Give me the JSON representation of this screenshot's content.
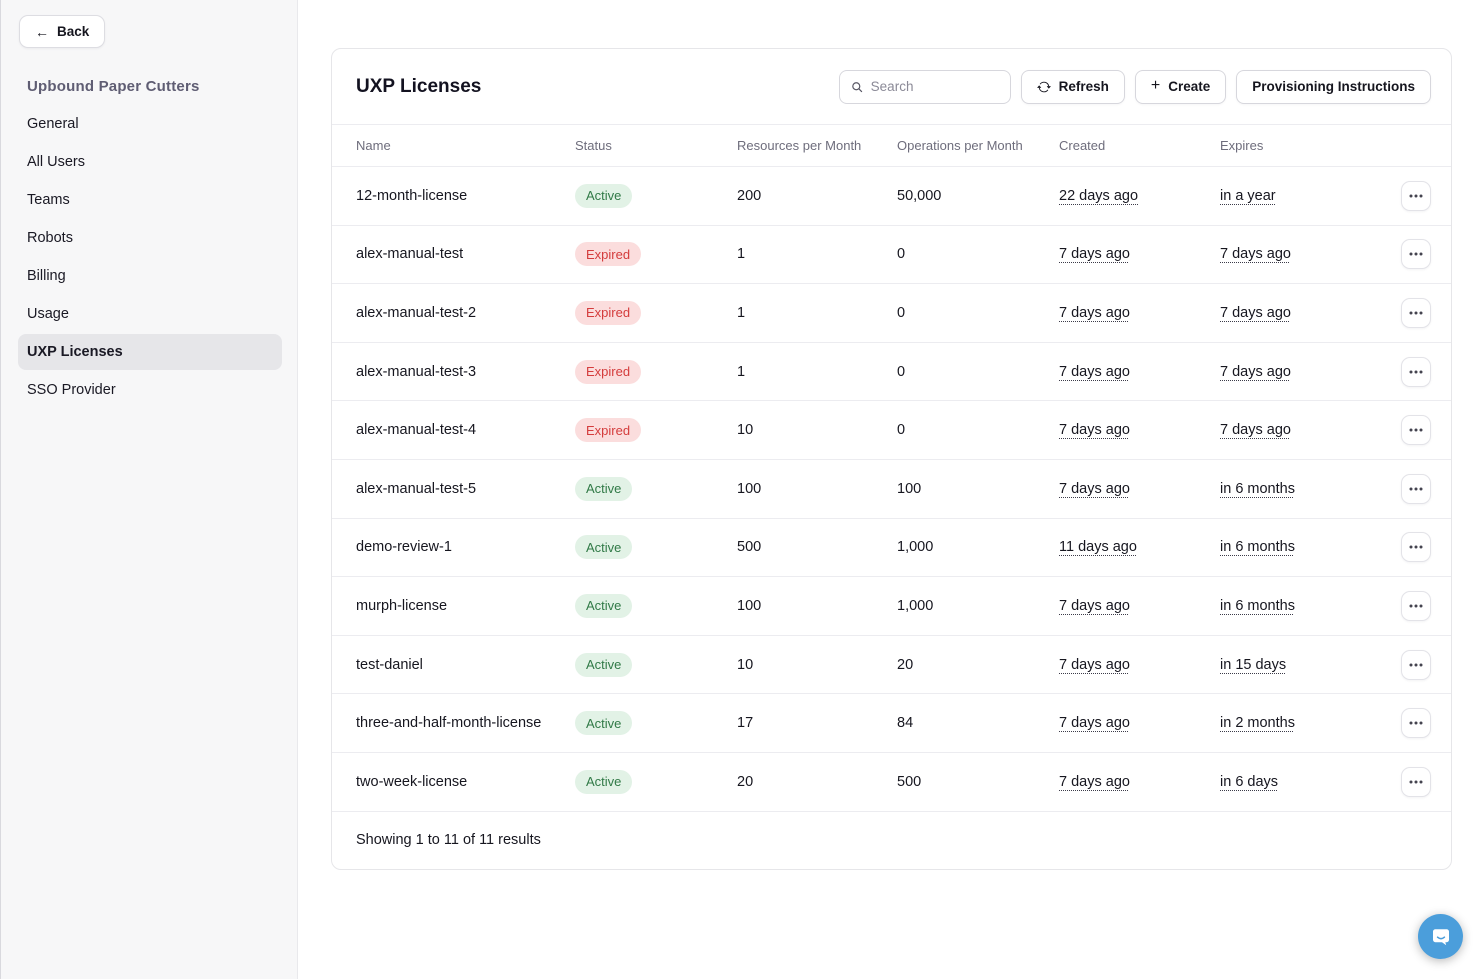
{
  "sidebar": {
    "back_label": "Back",
    "org_title": "Upbound Paper Cutters",
    "items": [
      {
        "label": "General",
        "active": false
      },
      {
        "label": "All Users",
        "active": false
      },
      {
        "label": "Teams",
        "active": false
      },
      {
        "label": "Robots",
        "active": false
      },
      {
        "label": "Billing",
        "active": false
      },
      {
        "label": "Usage",
        "active": false
      },
      {
        "label": "UXP Licenses",
        "active": true
      },
      {
        "label": "SSO Provider",
        "active": false
      }
    ]
  },
  "main": {
    "title": "UXP Licenses",
    "search": {
      "placeholder": "Search"
    },
    "buttons": {
      "refresh": "Refresh",
      "create": "Create",
      "provisioning": "Provisioning Instructions"
    },
    "table": {
      "columns": [
        "Name",
        "Status",
        "Resources per Month",
        "Operations per Month",
        "Created",
        "Expires"
      ],
      "rows": [
        {
          "name": "12-month-license",
          "status": "Active",
          "status_kind": "active",
          "resources": "200",
          "operations": "50,000",
          "created": "22 days ago",
          "expires": "in a year"
        },
        {
          "name": "alex-manual-test",
          "status": "Expired",
          "status_kind": "expired",
          "resources": "1",
          "operations": "0",
          "created": "7 days ago",
          "expires": "7 days ago"
        },
        {
          "name": "alex-manual-test-2",
          "status": "Expired",
          "status_kind": "expired",
          "resources": "1",
          "operations": "0",
          "created": "7 days ago",
          "expires": "7 days ago"
        },
        {
          "name": "alex-manual-test-3",
          "status": "Expired",
          "status_kind": "expired",
          "resources": "1",
          "operations": "0",
          "created": "7 days ago",
          "expires": "7 days ago"
        },
        {
          "name": "alex-manual-test-4",
          "status": "Expired",
          "status_kind": "expired",
          "resources": "10",
          "operations": "0",
          "created": "7 days ago",
          "expires": "7 days ago"
        },
        {
          "name": "alex-manual-test-5",
          "status": "Active",
          "status_kind": "active",
          "resources": "100",
          "operations": "100",
          "created": "7 days ago",
          "expires": "in 6 months"
        },
        {
          "name": "demo-review-1",
          "status": "Active",
          "status_kind": "active",
          "resources": "500",
          "operations": "1,000",
          "created": "11 days ago",
          "expires": "in 6 months"
        },
        {
          "name": "murph-license",
          "status": "Active",
          "status_kind": "active",
          "resources": "100",
          "operations": "1,000",
          "created": "7 days ago",
          "expires": "in 6 months"
        },
        {
          "name": "test-daniel",
          "status": "Active",
          "status_kind": "active",
          "resources": "10",
          "operations": "20",
          "created": "7 days ago",
          "expires": "in 15 days"
        },
        {
          "name": "three-and-half-month-license",
          "status": "Active",
          "status_kind": "active",
          "resources": "17",
          "operations": "84",
          "created": "7 days ago",
          "expires": "in 2 months"
        },
        {
          "name": "two-week-license",
          "status": "Active",
          "status_kind": "active",
          "resources": "20",
          "operations": "500",
          "created": "7 days ago",
          "expires": "in 6 days"
        }
      ]
    },
    "footer": {
      "summary": "Showing 1 to 11 of 11 results"
    }
  },
  "icons": {
    "back": "back-arrow-icon",
    "search": "search-icon",
    "refresh": "refresh-icon",
    "plus": "plus-icon",
    "row_menu": "ellipsis-icon",
    "chat": "chat-bubble-icon"
  },
  "colors": {
    "active_badge_bg": "#e2f2e6",
    "active_badge_text": "#317a47",
    "expired_badge_bg": "#fbdddd",
    "expired_badge_text": "#d43c3c",
    "sidebar_bg": "#f7f7f8",
    "sidebar_selected_bg": "#e6e6e9",
    "org_title_text": "#5f5d73",
    "table_border": "#ececf0",
    "header_text": "#6e6d7c",
    "chat_button": "#4b9edb"
  }
}
